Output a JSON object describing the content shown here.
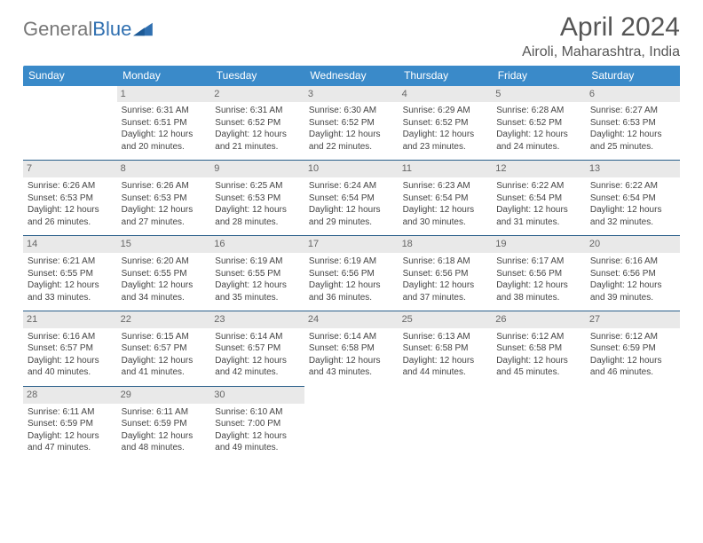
{
  "brand": {
    "name1": "General",
    "name2": "Blue"
  },
  "title": "April 2024",
  "location": "Airoli, Maharashtra, India",
  "colors": {
    "header_bg": "#3a8ac9",
    "header_text": "#ffffff",
    "daynum_bg": "#e9e9e9",
    "row_border": "#2a5f8a",
    "text": "#444444",
    "title": "#555555"
  },
  "weekdays": [
    "Sunday",
    "Monday",
    "Tuesday",
    "Wednesday",
    "Thursday",
    "Friday",
    "Saturday"
  ],
  "weeks": [
    [
      null,
      {
        "n": "1",
        "sr": "Sunrise: 6:31 AM",
        "ss": "Sunset: 6:51 PM",
        "dl": "Daylight: 12 hours and 20 minutes."
      },
      {
        "n": "2",
        "sr": "Sunrise: 6:31 AM",
        "ss": "Sunset: 6:52 PM",
        "dl": "Daylight: 12 hours and 21 minutes."
      },
      {
        "n": "3",
        "sr": "Sunrise: 6:30 AM",
        "ss": "Sunset: 6:52 PM",
        "dl": "Daylight: 12 hours and 22 minutes."
      },
      {
        "n": "4",
        "sr": "Sunrise: 6:29 AM",
        "ss": "Sunset: 6:52 PM",
        "dl": "Daylight: 12 hours and 23 minutes."
      },
      {
        "n": "5",
        "sr": "Sunrise: 6:28 AM",
        "ss": "Sunset: 6:52 PM",
        "dl": "Daylight: 12 hours and 24 minutes."
      },
      {
        "n": "6",
        "sr": "Sunrise: 6:27 AM",
        "ss": "Sunset: 6:53 PM",
        "dl": "Daylight: 12 hours and 25 minutes."
      }
    ],
    [
      {
        "n": "7",
        "sr": "Sunrise: 6:26 AM",
        "ss": "Sunset: 6:53 PM",
        "dl": "Daylight: 12 hours and 26 minutes."
      },
      {
        "n": "8",
        "sr": "Sunrise: 6:26 AM",
        "ss": "Sunset: 6:53 PM",
        "dl": "Daylight: 12 hours and 27 minutes."
      },
      {
        "n": "9",
        "sr": "Sunrise: 6:25 AM",
        "ss": "Sunset: 6:53 PM",
        "dl": "Daylight: 12 hours and 28 minutes."
      },
      {
        "n": "10",
        "sr": "Sunrise: 6:24 AM",
        "ss": "Sunset: 6:54 PM",
        "dl": "Daylight: 12 hours and 29 minutes."
      },
      {
        "n": "11",
        "sr": "Sunrise: 6:23 AM",
        "ss": "Sunset: 6:54 PM",
        "dl": "Daylight: 12 hours and 30 minutes."
      },
      {
        "n": "12",
        "sr": "Sunrise: 6:22 AM",
        "ss": "Sunset: 6:54 PM",
        "dl": "Daylight: 12 hours and 31 minutes."
      },
      {
        "n": "13",
        "sr": "Sunrise: 6:22 AM",
        "ss": "Sunset: 6:54 PM",
        "dl": "Daylight: 12 hours and 32 minutes."
      }
    ],
    [
      {
        "n": "14",
        "sr": "Sunrise: 6:21 AM",
        "ss": "Sunset: 6:55 PM",
        "dl": "Daylight: 12 hours and 33 minutes."
      },
      {
        "n": "15",
        "sr": "Sunrise: 6:20 AM",
        "ss": "Sunset: 6:55 PM",
        "dl": "Daylight: 12 hours and 34 minutes."
      },
      {
        "n": "16",
        "sr": "Sunrise: 6:19 AM",
        "ss": "Sunset: 6:55 PM",
        "dl": "Daylight: 12 hours and 35 minutes."
      },
      {
        "n": "17",
        "sr": "Sunrise: 6:19 AM",
        "ss": "Sunset: 6:56 PM",
        "dl": "Daylight: 12 hours and 36 minutes."
      },
      {
        "n": "18",
        "sr": "Sunrise: 6:18 AM",
        "ss": "Sunset: 6:56 PM",
        "dl": "Daylight: 12 hours and 37 minutes."
      },
      {
        "n": "19",
        "sr": "Sunrise: 6:17 AM",
        "ss": "Sunset: 6:56 PM",
        "dl": "Daylight: 12 hours and 38 minutes."
      },
      {
        "n": "20",
        "sr": "Sunrise: 6:16 AM",
        "ss": "Sunset: 6:56 PM",
        "dl": "Daylight: 12 hours and 39 minutes."
      }
    ],
    [
      {
        "n": "21",
        "sr": "Sunrise: 6:16 AM",
        "ss": "Sunset: 6:57 PM",
        "dl": "Daylight: 12 hours and 40 minutes."
      },
      {
        "n": "22",
        "sr": "Sunrise: 6:15 AM",
        "ss": "Sunset: 6:57 PM",
        "dl": "Daylight: 12 hours and 41 minutes."
      },
      {
        "n": "23",
        "sr": "Sunrise: 6:14 AM",
        "ss": "Sunset: 6:57 PM",
        "dl": "Daylight: 12 hours and 42 minutes."
      },
      {
        "n": "24",
        "sr": "Sunrise: 6:14 AM",
        "ss": "Sunset: 6:58 PM",
        "dl": "Daylight: 12 hours and 43 minutes."
      },
      {
        "n": "25",
        "sr": "Sunrise: 6:13 AM",
        "ss": "Sunset: 6:58 PM",
        "dl": "Daylight: 12 hours and 44 minutes."
      },
      {
        "n": "26",
        "sr": "Sunrise: 6:12 AM",
        "ss": "Sunset: 6:58 PM",
        "dl": "Daylight: 12 hours and 45 minutes."
      },
      {
        "n": "27",
        "sr": "Sunrise: 6:12 AM",
        "ss": "Sunset: 6:59 PM",
        "dl": "Daylight: 12 hours and 46 minutes."
      }
    ],
    [
      {
        "n": "28",
        "sr": "Sunrise: 6:11 AM",
        "ss": "Sunset: 6:59 PM",
        "dl": "Daylight: 12 hours and 47 minutes."
      },
      {
        "n": "29",
        "sr": "Sunrise: 6:11 AM",
        "ss": "Sunset: 6:59 PM",
        "dl": "Daylight: 12 hours and 48 minutes."
      },
      {
        "n": "30",
        "sr": "Sunrise: 6:10 AM",
        "ss": "Sunset: 7:00 PM",
        "dl": "Daylight: 12 hours and 49 minutes."
      },
      null,
      null,
      null,
      null
    ]
  ]
}
